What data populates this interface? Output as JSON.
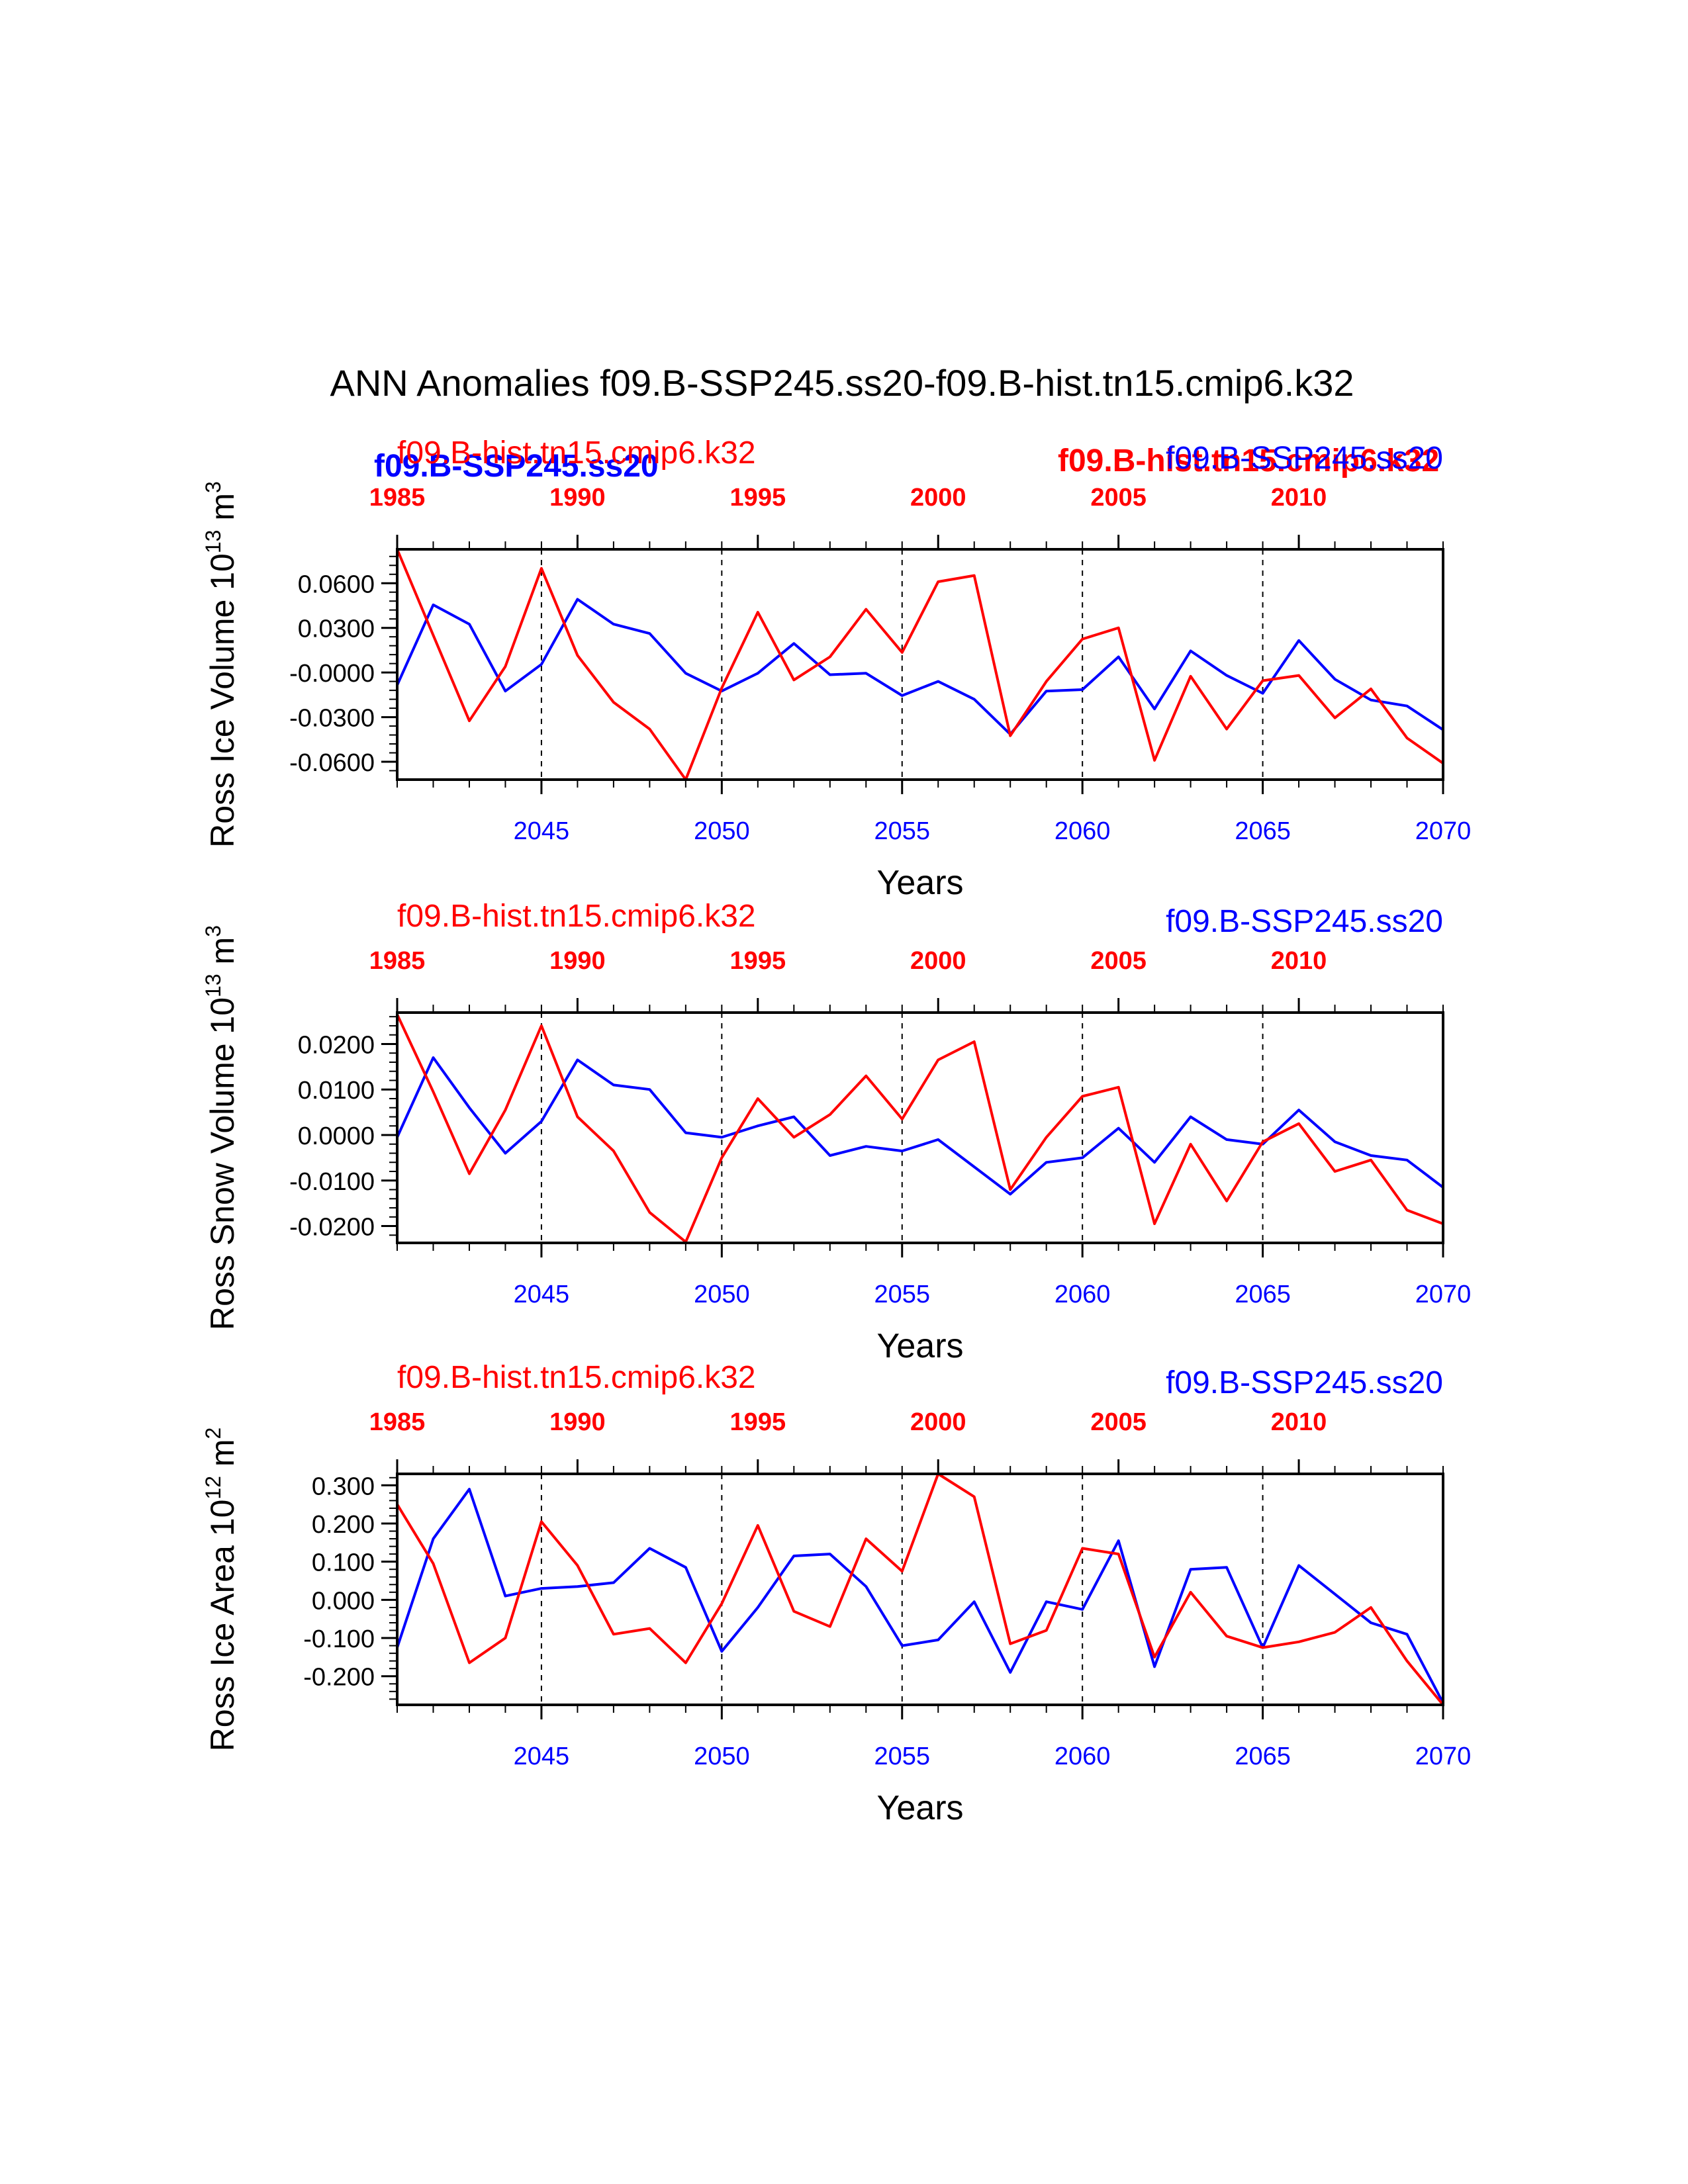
{
  "page_title": "ANN Anomalies f09.B-SSP245.ss20-f09.B-hist.tn15.cmip6.k32",
  "overlay_labels": {
    "left_bold": "f09.B-SSP245.ss20",
    "right_bold": "f09.B-hist.tn15.cmip6.k32"
  },
  "colors": {
    "ssp": "#0000ff",
    "hist": "#ff0000",
    "axis": "#000000"
  },
  "chart_data": [
    {
      "type": "line",
      "title": "",
      "ylabel": "Ross Ice Volume 10^13 m^3",
      "xlabel": "Years",
      "hist_label": "f09.B-hist.tn15.cmip6.k32",
      "ssp_label": "f09.B-SSP245.ss20",
      "ylim": [
        -0.072,
        0.0828
      ],
      "yticks": [
        -0.06,
        -0.03,
        0.0,
        0.03,
        0.06
      ],
      "ytick_labels": [
        "-0.0600",
        "-0.0300",
        "-0.0000",
        "0.0300",
        "0.0600"
      ],
      "xlim": [
        2041,
        2070
      ],
      "xticks": [
        2045,
        2050,
        2055,
        2060,
        2065,
        2070
      ],
      "top_xlim": [
        1985,
        2014
      ],
      "top_xticks": [
        1985,
        1990,
        1995,
        2000,
        2005,
        2010
      ],
      "dashed_years": [
        2045,
        2050,
        2055,
        2060,
        2065
      ],
      "series": [
        {
          "name": "f09.B-SSP245.ss20",
          "color": "#0000ff",
          "x": [
            2041,
            2042,
            2043,
            2044,
            2045,
            2046,
            2047,
            2048,
            2049,
            2050,
            2051,
            2052,
            2053,
            2054,
            2055,
            2056,
            2057,
            2058,
            2059,
            2060,
            2061,
            2062,
            2063,
            2064,
            2065,
            2066,
            2067,
            2068,
            2069,
            2070
          ],
          "values": [
            -0.0085,
            0.0455,
            0.0325,
            -0.0125,
            0.0055,
            0.0492,
            0.0325,
            0.0262,
            -0.0005,
            -0.0125,
            -0.0005,
            0.0195,
            -0.0015,
            -0.0005,
            -0.0155,
            -0.006,
            -0.018,
            -0.0415,
            -0.0125,
            -0.0115,
            0.0105,
            -0.0245,
            0.0145,
            -0.002,
            -0.014,
            0.0215,
            -0.0045,
            -0.0185,
            -0.0225,
            -0.0385
          ]
        },
        {
          "name": "f09.B-hist.tn15.cmip6.k32",
          "color": "#ff0000",
          "x": [
            1985,
            1986,
            1987,
            1988,
            1989,
            1990,
            1991,
            1992,
            1993,
            1994,
            1995,
            1996,
            1997,
            1998,
            1999,
            2000,
            2001,
            2002,
            2003,
            2004,
            2005,
            2006,
            2007,
            2008,
            2009,
            2010,
            2011,
            2012,
            2013,
            2014
          ],
          "values": [
            0.0828,
            0.025,
            -0.0325,
            0.004,
            0.07,
            0.0115,
            -0.02,
            -0.038,
            -0.072,
            -0.0105,
            0.0405,
            -0.005,
            0.0105,
            0.0425,
            0.0135,
            0.061,
            0.0652,
            -0.0425,
            -0.006,
            0.0225,
            0.03,
            -0.059,
            -0.0025,
            -0.038,
            -0.0055,
            -0.002,
            -0.0305,
            -0.011,
            -0.044,
            -0.061
          ]
        }
      ]
    },
    {
      "type": "line",
      "title": "",
      "ylabel": "Ross Snow Volume 10^13 m^3",
      "xlabel": "Years",
      "hist_label": "f09.B-hist.tn15.cmip6.k32",
      "ssp_label": "f09.B-SSP245.ss20",
      "ylim": [
        -0.0237,
        0.0269
      ],
      "yticks": [
        -0.02,
        -0.01,
        0.0,
        0.01,
        0.02
      ],
      "ytick_labels": [
        "-0.0200",
        "-0.0100",
        "0.0000",
        "0.0100",
        "0.0200"
      ],
      "xlim": [
        2041,
        2070
      ],
      "xticks": [
        2045,
        2050,
        2055,
        2060,
        2065,
        2070
      ],
      "top_xlim": [
        1985,
        2014
      ],
      "top_xticks": [
        1985,
        1990,
        1995,
        2000,
        2005,
        2010
      ],
      "dashed_years": [
        2045,
        2050,
        2055,
        2060,
        2065
      ],
      "series": [
        {
          "name": "f09.B-SSP245.ss20",
          "color": "#0000ff",
          "x": [
            2041,
            2042,
            2043,
            2044,
            2045,
            2046,
            2047,
            2048,
            2049,
            2050,
            2051,
            2052,
            2053,
            2054,
            2055,
            2056,
            2057,
            2058,
            2059,
            2060,
            2061,
            2062,
            2063,
            2064,
            2065,
            2066,
            2067,
            2068,
            2069,
            2070
          ],
          "values": [
            -0.0005,
            0.017,
            0.006,
            -0.004,
            0.003,
            0.0165,
            0.011,
            0.01,
            0.0005,
            -0.0005,
            0.002,
            0.004,
            -0.0045,
            -0.0025,
            -0.0035,
            -0.001,
            -0.007,
            -0.013,
            -0.006,
            -0.005,
            0.0015,
            -0.006,
            0.004,
            -0.001,
            -0.002,
            0.0055,
            -0.0015,
            -0.0045,
            -0.0055,
            -0.0115
          ]
        },
        {
          "name": "f09.B-hist.tn15.cmip6.k32",
          "color": "#ff0000",
          "x": [
            1985,
            1986,
            1987,
            1988,
            1989,
            1990,
            1991,
            1992,
            1993,
            1994,
            1995,
            1996,
            1997,
            1998,
            1999,
            2000,
            2001,
            2002,
            2003,
            2004,
            2005,
            2006,
            2007,
            2008,
            2009,
            2010,
            2011,
            2012,
            2013,
            2014
          ],
          "values": [
            0.0265,
            0.0095,
            -0.0085,
            0.0055,
            0.024,
            0.004,
            -0.0035,
            -0.017,
            -0.0235,
            -0.005,
            0.008,
            -0.0005,
            0.0045,
            0.013,
            0.0035,
            0.0165,
            0.0205,
            -0.012,
            -0.0005,
            0.0085,
            0.0105,
            -0.0195,
            -0.002,
            -0.0145,
            -0.0015,
            0.0025,
            -0.008,
            -0.0055,
            -0.0165,
            -0.0195
          ]
        }
      ]
    },
    {
      "type": "line",
      "title": "",
      "ylabel": "Ross Ice Area 10^12 m^2",
      "xlabel": "Years",
      "hist_label": "f09.B-hist.tn15.cmip6.k32",
      "ssp_label": "f09.B-SSP245.ss20",
      "ylim": [
        -0.275,
        0.33
      ],
      "yticks": [
        -0.2,
        -0.1,
        0.0,
        0.1,
        0.2,
        0.3
      ],
      "ytick_labels": [
        "-0.200",
        "-0.100",
        "0.000",
        "0.100",
        "0.200",
        "0.300"
      ],
      "xlim": [
        2041,
        2070
      ],
      "xticks": [
        2045,
        2050,
        2055,
        2060,
        2065,
        2070
      ],
      "top_xlim": [
        1985,
        2014
      ],
      "top_xticks": [
        1985,
        1990,
        1995,
        2000,
        2005,
        2010
      ],
      "dashed_years": [
        2045,
        2050,
        2055,
        2060,
        2065
      ],
      "series": [
        {
          "name": "f09.B-SSP245.ss20",
          "color": "#0000ff",
          "x": [
            2041,
            2042,
            2043,
            2044,
            2045,
            2046,
            2047,
            2048,
            2049,
            2050,
            2051,
            2052,
            2053,
            2054,
            2055,
            2056,
            2057,
            2058,
            2059,
            2060,
            2061,
            2062,
            2063,
            2064,
            2065,
            2066,
            2067,
            2068,
            2069,
            2070
          ],
          "values": [
            -0.125,
            0.16,
            0.29,
            0.01,
            0.03,
            0.035,
            0.045,
            0.135,
            0.085,
            -0.135,
            -0.02,
            0.115,
            0.12,
            0.035,
            -0.12,
            -0.105,
            -0.005,
            -0.19,
            -0.005,
            -0.025,
            0.155,
            -0.175,
            0.08,
            0.085,
            -0.125,
            0.09,
            0.015,
            -0.06,
            -0.09,
            -0.27
          ]
        },
        {
          "name": "f09.B-hist.tn15.cmip6.k32",
          "color": "#ff0000",
          "x": [
            1985,
            1986,
            1987,
            1988,
            1989,
            1990,
            1991,
            1992,
            1993,
            1994,
            1995,
            1996,
            1997,
            1998,
            1999,
            2000,
            2001,
            2002,
            2003,
            2004,
            2005,
            2006,
            2007,
            2008,
            2009,
            2010,
            2011,
            2012,
            2013,
            2014
          ],
          "values": [
            0.25,
            0.095,
            -0.165,
            -0.1,
            0.205,
            0.09,
            -0.09,
            -0.075,
            -0.165,
            -0.01,
            0.195,
            -0.03,
            -0.07,
            0.16,
            0.075,
            0.33,
            0.27,
            -0.115,
            -0.08,
            0.135,
            0.12,
            -0.15,
            0.02,
            -0.095,
            -0.125,
            -0.11,
            -0.085,
            -0.02,
            -0.16,
            -0.275
          ]
        }
      ]
    }
  ]
}
